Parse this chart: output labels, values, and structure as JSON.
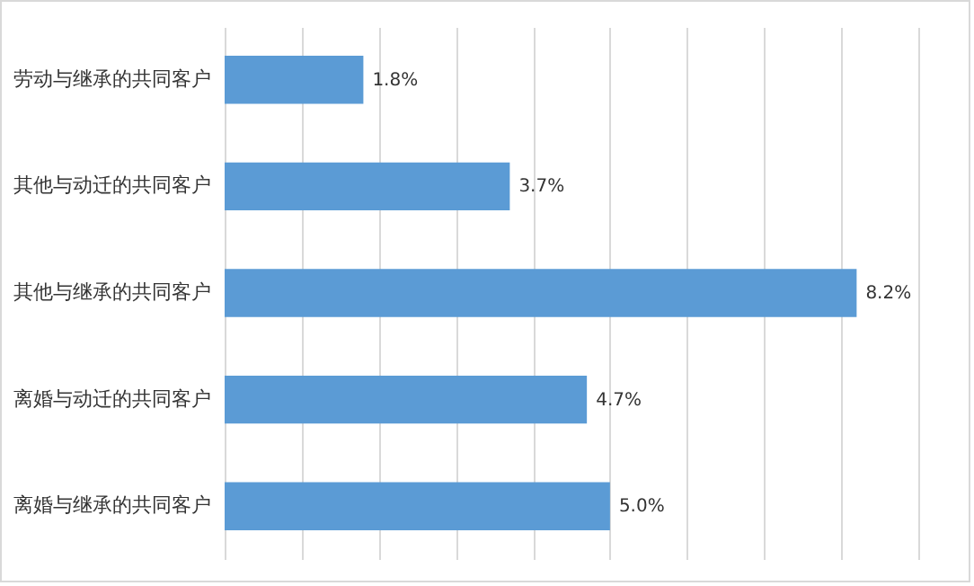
{
  "chart_data": {
    "type": "bar",
    "orientation": "horizontal",
    "categories": [
      "劳动与继承的共同客户",
      "其他与动迁的共同客户",
      "其他与继承的共同客户",
      "离婚与动迁的共同客户",
      "离婚与继承的共同客户"
    ],
    "values": [
      1.8,
      3.7,
      8.2,
      4.7,
      5.0
    ],
    "value_labels": [
      "1.8%",
      "3.7%",
      "8.2%",
      "4.7%",
      "5.0%"
    ],
    "color": "#5b9bd5",
    "xlim": [
      0,
      9
    ],
    "xticks": [
      {
        "value": 0,
        "label": null
      },
      {
        "value": 1,
        "label": null
      },
      {
        "value": 2,
        "label": null
      },
      {
        "value": 3,
        "label": null
      },
      {
        "value": 4,
        "label": null
      },
      {
        "value": 5,
        "label": null
      },
      {
        "value": 6,
        "label": null
      },
      {
        "value": 7,
        "label": null
      },
      {
        "value": 8,
        "label": null
      },
      {
        "value": 9,
        "label": null
      }
    ],
    "grid": "x",
    "tick_labels": "y"
  }
}
